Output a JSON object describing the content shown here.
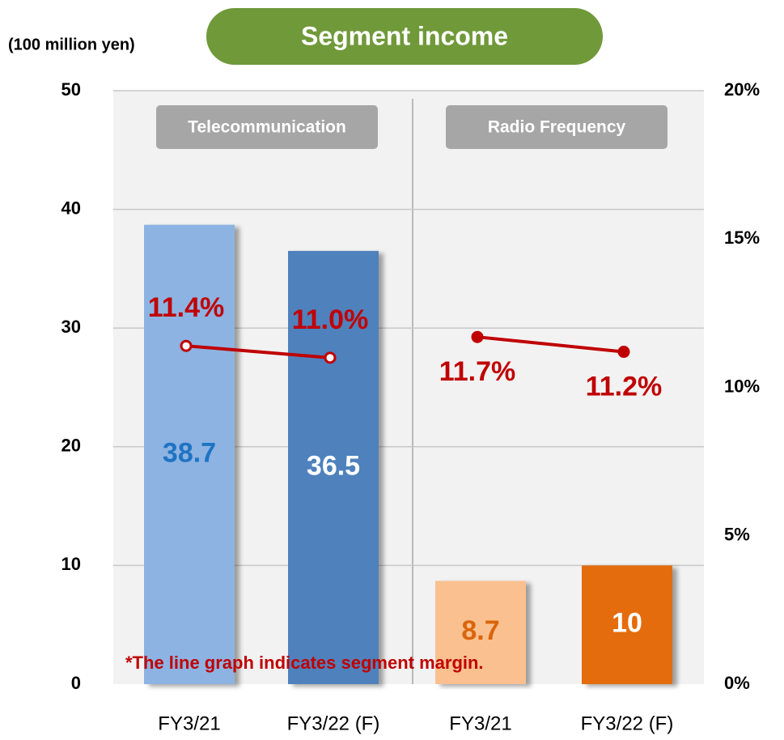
{
  "chart_data": {
    "type": "bar",
    "title": "Segment income",
    "y_label": "(100 million yen)",
    "note": "*The line graph indicates segment margin.",
    "panels": [
      "Telecommunication",
      "Radio Frequency"
    ],
    "categories": [
      "FY3/21",
      "FY3/22 (F)",
      "FY3/21",
      "FY3/22 (F)"
    ],
    "series": [
      {
        "values": [
          38.7,
          36.5,
          8.7,
          10
        ],
        "colors": [
          "#8db3e2",
          "#4f81bd",
          "#fac090",
          "#e46c0a"
        ],
        "label_colors": [
          "#1f73c3",
          "#ffffff",
          "#d9650b",
          "#ffffff"
        ]
      },
      {
        "type": "line",
        "axis": "y2",
        "color": "#c00000",
        "values": [
          11.4,
          11.0,
          11.7,
          11.2
        ],
        "value_labels": [
          "11.4%",
          "11.0%",
          "11.7%",
          "11.2%"
        ]
      }
    ],
    "ylim": [
      0,
      50
    ],
    "yticks": [
      0,
      10,
      20,
      30,
      40,
      50
    ],
    "y2lim": [
      0,
      20
    ],
    "y2ticks": [
      {
        "value": 0,
        "label": "0%"
      },
      {
        "value": 5,
        "label": "5%"
      },
      {
        "value": 10,
        "label": "10%"
      },
      {
        "value": 15,
        "label": "15%"
      },
      {
        "value": 20,
        "label": "20%"
      }
    ],
    "grid": true
  }
}
